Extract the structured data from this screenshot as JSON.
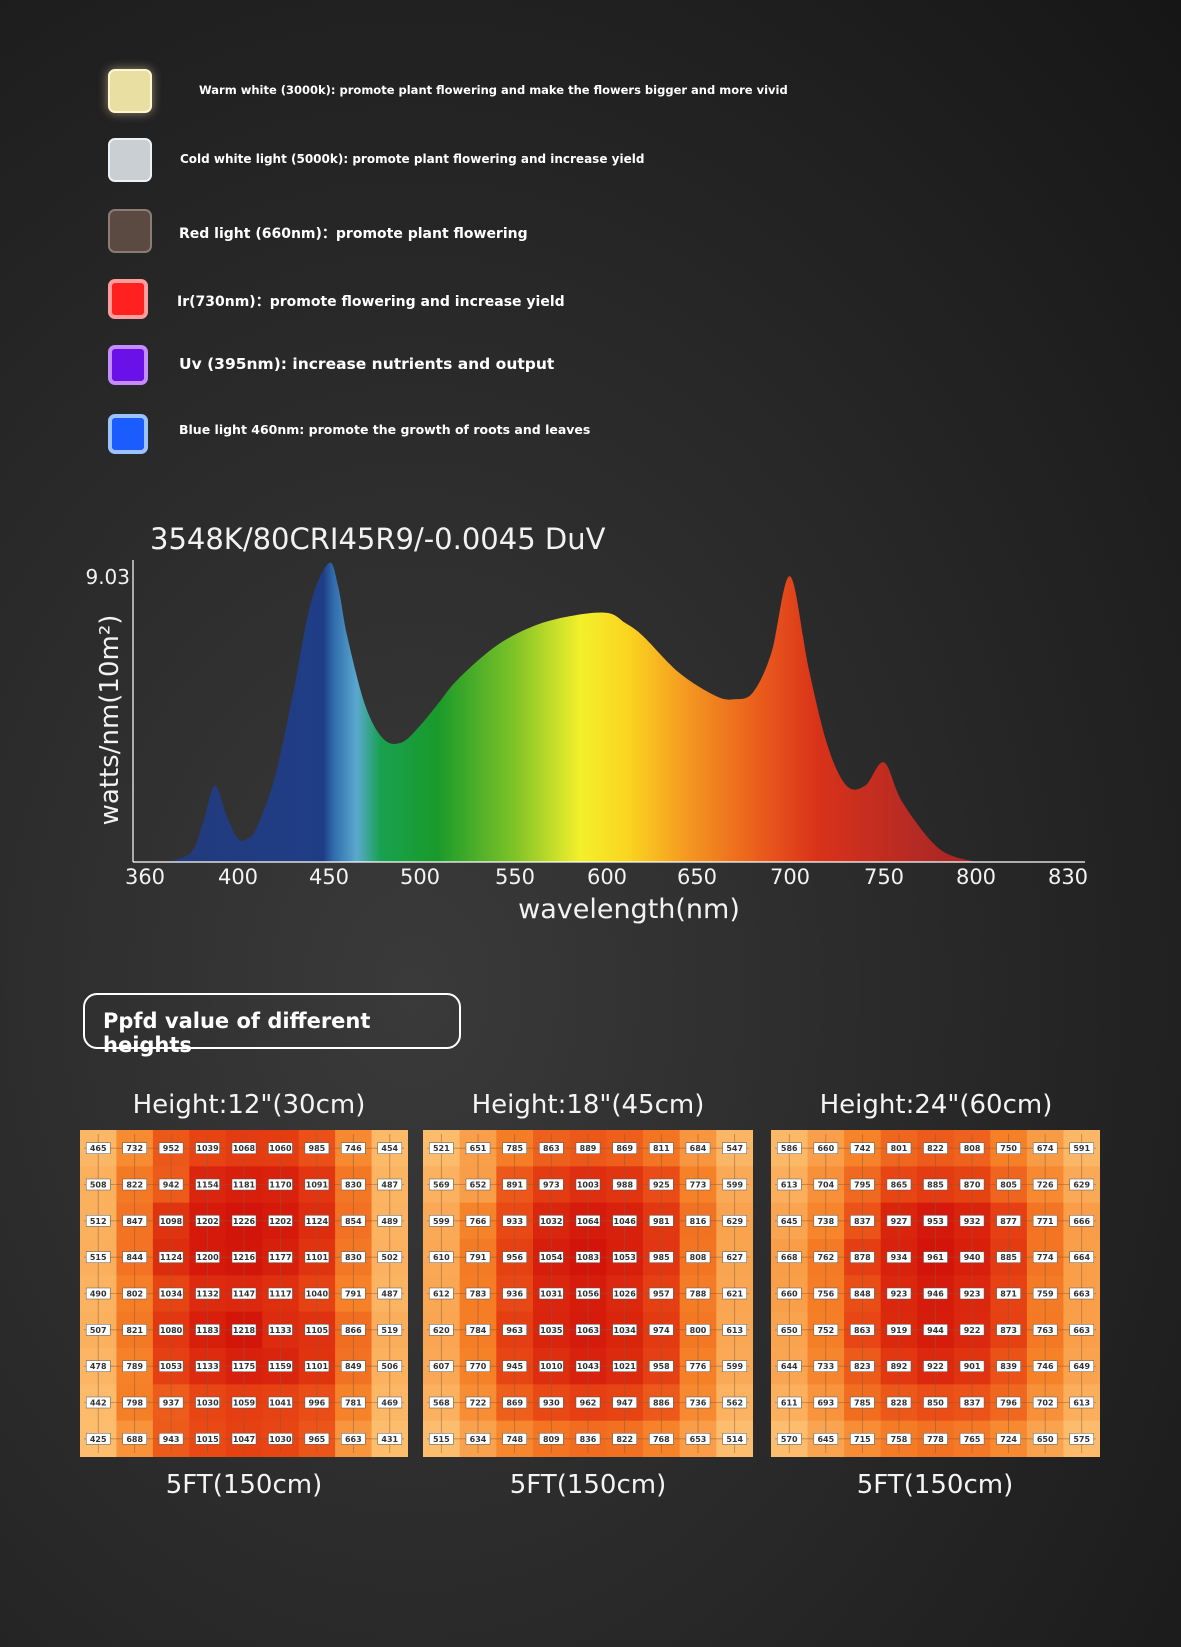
{
  "led_legend": [
    {
      "icon": "warm-white-led-icon",
      "text": "Warm white (3000k): promote plant flowering and make the flowers bigger and more vivid"
    },
    {
      "icon": "cold-white-led-icon",
      "text": "Cold white light (5000k): promote plant flowering and increase yield"
    },
    {
      "icon": "red-led-icon",
      "text": "Red light (660nm)：promote plant flowering"
    },
    {
      "icon": "ir-led-icon",
      "text": "Ir(730nm)：promote flowering and increase yield"
    },
    {
      "icon": "uv-led-icon",
      "text": "Uv (395nm): increase nutrients and output"
    },
    {
      "icon": "blue-led-icon",
      "text": "Blue light 460nm: promote the growth of roots and leaves"
    }
  ],
  "chart_data": [
    {
      "type": "area",
      "title": "3548K/80CRI45R9/-0.0045 DuV",
      "xlabel": "wavelength(nm)",
      "ylabel": "watts/nm(10m²)",
      "y_max_label": "9.03",
      "ylim": [
        0,
        9.03
      ],
      "x_tick_labels": [
        "360",
        "400",
        "450",
        "500",
        "550",
        "600",
        "650",
        "700",
        "750",
        "800",
        "830"
      ],
      "x": [
        370,
        380,
        385,
        390,
        395,
        400,
        405,
        410,
        420,
        430,
        440,
        450,
        455,
        460,
        470,
        480,
        490,
        500,
        510,
        520,
        540,
        560,
        580,
        600,
        610,
        620,
        640,
        660,
        670,
        680,
        690,
        700,
        710,
        720,
        730,
        740,
        750,
        760,
        780,
        800
      ],
      "values": [
        0,
        0.3,
        1.2,
        2.3,
        1.4,
        0.7,
        0.7,
        1.0,
        2.5,
        5.0,
        7.8,
        9.0,
        8.3,
        6.8,
        4.7,
        3.7,
        3.6,
        4.1,
        4.8,
        5.5,
        6.5,
        7.1,
        7.4,
        7.5,
        7.2,
        6.8,
        5.7,
        5.0,
        4.9,
        5.1,
        6.3,
        8.6,
        5.8,
        3.5,
        2.3,
        2.3,
        3.0,
        1.8,
        0.4,
        0
      ]
    },
    {
      "type": "heatmap",
      "title": "Height:12\"(30cm)",
      "footer": "5FT(150cm)",
      "values": [
        [
          465,
          732,
          952,
          1039,
          1068,
          1060,
          985,
          746,
          454
        ],
        [
          508,
          822,
          942,
          1154,
          1181,
          1170,
          1091,
          830,
          487
        ],
        [
          512,
          847,
          1098,
          1202,
          1226,
          1202,
          1124,
          854,
          489
        ],
        [
          515,
          844,
          1124,
          1200,
          1216,
          1177,
          1101,
          830,
          502
        ],
        [
          490,
          802,
          1034,
          1132,
          1147,
          1117,
          1040,
          791,
          487
        ],
        [
          507,
          821,
          1080,
          1183,
          1218,
          1133,
          1105,
          866,
          519
        ],
        [
          478,
          789,
          1053,
          1133,
          1175,
          1159,
          1101,
          849,
          506
        ],
        [
          442,
          798,
          937,
          1030,
          1059,
          1041,
          996,
          781,
          469
        ],
        [
          425,
          688,
          943,
          1015,
          1047,
          1030,
          965,
          663,
          431
        ]
      ]
    },
    {
      "type": "heatmap",
      "title": "Height:18\"(45cm)",
      "footer": "5FT(150cm)",
      "values": [
        [
          521,
          651,
          785,
          863,
          889,
          869,
          811,
          684,
          547
        ],
        [
          569,
          652,
          891,
          973,
          1003,
          988,
          925,
          773,
          599
        ],
        [
          599,
          766,
          933,
          1032,
          1064,
          1046,
          981,
          816,
          629
        ],
        [
          610,
          791,
          956,
          1054,
          1083,
          1053,
          985,
          808,
          627
        ],
        [
          612,
          783,
          936,
          1031,
          1056,
          1026,
          957,
          788,
          621
        ],
        [
          620,
          784,
          963,
          1035,
          1063,
          1034,
          974,
          800,
          613
        ],
        [
          607,
          770,
          945,
          1010,
          1043,
          1021,
          958,
          776,
          599
        ],
        [
          568,
          722,
          869,
          930,
          962,
          947,
          886,
          736,
          562
        ],
        [
          515,
          634,
          748,
          809,
          836,
          822,
          768,
          653,
          514
        ]
      ]
    },
    {
      "type": "heatmap",
      "title": "Height:24\"(60cm)",
      "footer": "5FT(150cm)",
      "values": [
        [
          586,
          660,
          742,
          801,
          822,
          808,
          750,
          674,
          591
        ],
        [
          613,
          704,
          795,
          865,
          885,
          870,
          805,
          726,
          629
        ],
        [
          645,
          738,
          837,
          927,
          953,
          932,
          877,
          771,
          666
        ],
        [
          668,
          762,
          878,
          934,
          961,
          940,
          885,
          774,
          664
        ],
        [
          660,
          756,
          848,
          923,
          946,
          923,
          871,
          759,
          663
        ],
        [
          650,
          752,
          863,
          919,
          944,
          922,
          873,
          763,
          663
        ],
        [
          644,
          733,
          823,
          892,
          922,
          901,
          839,
          746,
          649
        ],
        [
          611,
          693,
          785,
          828,
          850,
          837,
          796,
          702,
          613
        ],
        [
          570,
          645,
          715,
          758,
          778,
          765,
          724,
          650,
          575
        ]
      ]
    }
  ],
  "ppfd_header": "Ppfd value of different heights"
}
